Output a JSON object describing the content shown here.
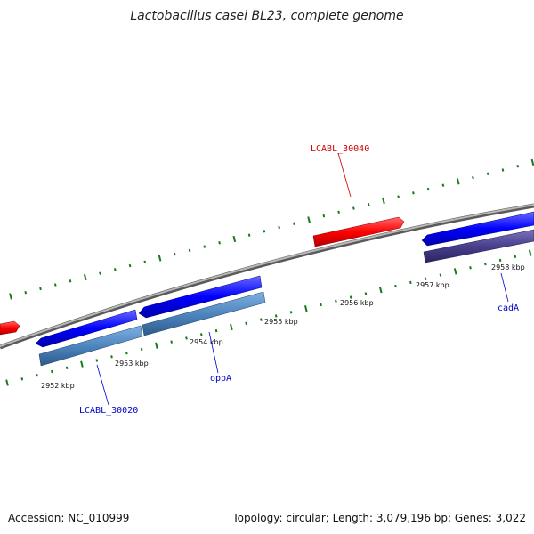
{
  "title": "Lactobacillus casei BL23, complete genome",
  "footer": {
    "accession": "Accession: NC_010999",
    "summary": "Topology: circular; Length: 3,079,196 bp; Genes: 3,022"
  },
  "scale_ticks": [
    "2952 kbp",
    "2953 kbp",
    "2954 kbp",
    "2955 kbp",
    "2956 kbp",
    "2957 kbp",
    "2958 kbp"
  ],
  "gene_labels": [
    {
      "id": "LCABL_30040",
      "text": "LCABL_30040",
      "color": "#cc0000"
    },
    {
      "id": "LCABL_30020",
      "text": "LCABL_30020",
      "color": "#0000cc"
    },
    {
      "id": "oppA",
      "text": "oppA",
      "color": "#0000cc"
    },
    {
      "id": "cadA",
      "text": "cadA",
      "color": "#0000cc"
    }
  ],
  "colors": {
    "forward_cds": "#ff0000",
    "reverse_cds": "#0000ff",
    "reverse_gene_light": "#4f86c0",
    "reverse_gene_dark": "#48408c",
    "backbone": "#888888",
    "tick_marks": "#1a7a1a"
  }
}
